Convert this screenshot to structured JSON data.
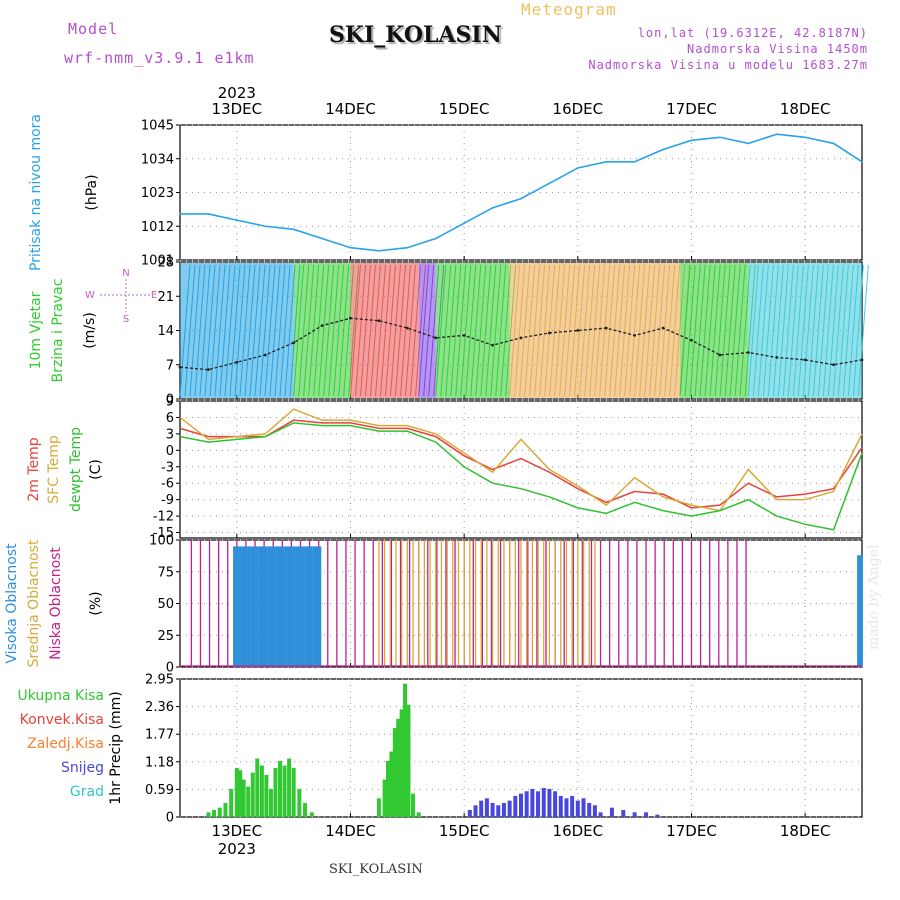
{
  "header": {
    "model_label": "Model",
    "model_name": "wrf-nmm_v3.9.1 e1km",
    "station": "SKI_KOLASIN",
    "type": "Meteogram",
    "lonlat": "lon,lat (19.6312E, 42.8187N)",
    "elevation": "Nadmorska Visina 1450m",
    "elevation_model": "Nadmorska Visina u modelu 1683.27m"
  },
  "footer": {
    "station": "SKI_KOLASIN",
    "watermark": "made by Angel"
  },
  "colors": {
    "pressure": "#29a3e6",
    "temp2m": "#e8423c",
    "sfc_temp": "#d9a83a",
    "dewpt": "#30c030",
    "high_cloud": "#2f8fd8",
    "mid_cloud": "#d9a83a",
    "low_cloud": "#c0208c",
    "total_precip": "#32c832",
    "conv_precip": "#e8423c",
    "freezing_precip": "#ff7f2a",
    "snow": "#4848e0",
    "hail": "#30c8c8",
    "wind_label": "#2ecc2e",
    "wind_dir": "#c060c0"
  },
  "chart_data": [
    {
      "type": "line",
      "panel": "pressure",
      "ylabel_lines": [
        "Pritisak na nivou mora",
        "(hPa)"
      ],
      "yticks": [
        1001,
        1012,
        1023,
        1034,
        1045
      ],
      "ylim": [
        1001,
        1045
      ],
      "top_xaxis": {
        "year": "2023",
        "ticks": [
          "13DEC",
          "14DEC",
          "15DEC",
          "16DEC",
          "17DEC",
          "18DEC"
        ]
      },
      "x_days": [
        12.5,
        12.75,
        13.0,
        13.25,
        13.5,
        13.75,
        14.0,
        14.25,
        14.5,
        14.75,
        15.0,
        15.25,
        15.5,
        15.75,
        16.0,
        16.25,
        16.5,
        16.75,
        17.0,
        17.25,
        17.5,
        17.75,
        18.0,
        18.25,
        18.5
      ],
      "series": [
        {
          "values": [
            1016,
            1016,
            1014,
            1012,
            1011,
            1008,
            1005,
            1004,
            1005,
            1008,
            1013,
            1018,
            1021,
            1026,
            1031,
            1033,
            1033,
            1037,
            1040,
            1041,
            1039,
            1042,
            1041,
            1039,
            1033
          ]
        }
      ]
    },
    {
      "type": "line",
      "panel": "wind",
      "ylabel_lines": [
        "10m Vjetar",
        "Brzina i Pravac",
        "(m/s)"
      ],
      "direction_legend": [
        "N",
        "W",
        "E",
        "S"
      ],
      "yticks": [
        0,
        7,
        14,
        21,
        28
      ],
      "ylim": [
        0,
        28
      ],
      "series": [
        {
          "name": "Brzina",
          "values": [
            6.5,
            6.0,
            7.5,
            9.0,
            11.5,
            15.0,
            16.5,
            16.0,
            14.5,
            12.5,
            13.0,
            11.0,
            12.5,
            13.5,
            14.0,
            14.5,
            13.0,
            14.5,
            12.0,
            9.0,
            9.5,
            8.5,
            8.0,
            7.0,
            8.0
          ]
        }
      ],
      "direction_bands": [
        {
          "from": 12.5,
          "to": 13.5,
          "color": "#1aa0e0"
        },
        {
          "from": 13.5,
          "to": 14.0,
          "color": "#2ecc2e"
        },
        {
          "from": 14.0,
          "to": 14.6,
          "color": "#e85050"
        },
        {
          "from": 14.6,
          "to": 14.75,
          "color": "#7a3ee0"
        },
        {
          "from": 14.75,
          "to": 15.4,
          "color": "#2ecc2e"
        },
        {
          "from": 15.4,
          "to": 16.9,
          "color": "#e8a84a"
        },
        {
          "from": 16.9,
          "to": 17.5,
          "color": "#2ecc2e"
        },
        {
          "from": 17.5,
          "to": 18.5,
          "color": "#38c8d8"
        }
      ]
    },
    {
      "type": "line",
      "panel": "temperature",
      "ylabel_lines": [
        "2m Temp",
        "SFC Temp",
        "dewpt Temp",
        "(C)"
      ],
      "yticks": [
        -15,
        -12,
        -9,
        -6,
        -3,
        0,
        3,
        6,
        9
      ],
      "ylim": [
        -16,
        9
      ],
      "series": [
        {
          "name": "2m Temp",
          "values": [
            4.0,
            2.5,
            2.5,
            2.5,
            5.5,
            5.0,
            5.0,
            4.0,
            4.0,
            2.5,
            -1.0,
            -3.5,
            -1.5,
            -4.0,
            -7.0,
            -9.5,
            -7.5,
            -8.0,
            -10.5,
            -10.0,
            -6.0,
            -8.5,
            -8.0,
            -7.0,
            0.5
          ]
        },
        {
          "name": "SFC Temp",
          "values": [
            6.0,
            2.0,
            2.5,
            3.0,
            7.5,
            5.5,
            5.5,
            4.5,
            4.5,
            3.0,
            -0.5,
            -4.0,
            2.0,
            -3.5,
            -6.5,
            -10.0,
            -5.0,
            -8.5,
            -10.0,
            -11.0,
            -3.5,
            -9.0,
            -9.0,
            -7.5,
            3.0
          ]
        },
        {
          "name": "dewpt Temp",
          "values": [
            2.5,
            1.5,
            2.0,
            2.5,
            5.0,
            4.5,
            4.5,
            3.5,
            3.5,
            1.5,
            -3.0,
            -6.0,
            -7.0,
            -8.5,
            -10.5,
            -11.5,
            -9.5,
            -11.0,
            -12.0,
            -11.0,
            -9.0,
            -12.0,
            -13.5,
            -14.5,
            -0.5
          ]
        }
      ]
    },
    {
      "type": "bar",
      "panel": "clouds",
      "ylabel_lines": [
        "Visoka Oblacnost",
        "Srednja Oblacnost",
        "Niska Oblacnost",
        "(%)"
      ],
      "yticks": [
        0,
        25,
        50,
        75,
        100
      ],
      "ylim": [
        0,
        100
      ],
      "series": [
        {
          "name": "Visoka Oblacnost",
          "segments": [
            [
              12.98,
              13.75,
              95
            ],
            [
              18.47,
              18.5,
              88
            ]
          ]
        },
        {
          "name": "Srednja Oblacnost",
          "segments": [
            [
              13.55,
              13.75,
              95
            ],
            [
              14.25,
              16.2,
              100
            ]
          ]
        },
        {
          "name": "Niska Oblacnost",
          "segments": [
            [
              12.6,
              17.5,
              100
            ]
          ]
        }
      ]
    },
    {
      "type": "bar",
      "panel": "precip",
      "ylabel_lines": [
        "1hr Precip (mm)"
      ],
      "legend": [
        "Ukupna Kisa",
        "Konvek.Kisa",
        "Zaledj.Kisa",
        "Snijeg",
        "Grad"
      ],
      "yticks": [
        0,
        0.59,
        1.18,
        1.77,
        2.36,
        2.95
      ],
      "ylim": [
        0,
        2.95
      ],
      "bottom_xaxis": {
        "year": "2023",
        "ticks": [
          "13DEC",
          "14DEC",
          "15DEC",
          "16DEC",
          "17DEC",
          "18DEC"
        ]
      },
      "series": [
        {
          "name": "Ukupna Kisa",
          "x": [
            12.75,
            12.8,
            12.85,
            12.9,
            12.95,
            13.0,
            13.03,
            13.06,
            13.1,
            13.14,
            13.18,
            13.22,
            13.26,
            13.3,
            13.34,
            13.38,
            13.42,
            13.46,
            13.5,
            13.55,
            13.6,
            13.66,
            14.25,
            14.3,
            14.33,
            14.36,
            14.39,
            14.42,
            14.45,
            14.48,
            14.51,
            14.55,
            14.6
          ],
          "values": [
            0.1,
            0.15,
            0.2,
            0.3,
            0.6,
            1.05,
            1.0,
            0.8,
            0.65,
            0.95,
            1.25,
            1.1,
            0.9,
            0.6,
            1.05,
            1.2,
            1.1,
            1.25,
            1.05,
            0.6,
            0.3,
            0.1,
            0.4,
            0.8,
            1.2,
            1.4,
            1.9,
            2.1,
            2.3,
            2.85,
            2.4,
            0.5,
            0.1
          ]
        },
        {
          "name": "Snijeg",
          "x": [
            15.05,
            15.1,
            15.15,
            15.2,
            15.25,
            15.3,
            15.35,
            15.4,
            15.45,
            15.5,
            15.55,
            15.6,
            15.65,
            15.7,
            15.75,
            15.8,
            15.85,
            15.9,
            15.95,
            16.0,
            16.05,
            16.1,
            16.15,
            16.2,
            16.3,
            16.4,
            16.5,
            16.6,
            16.7
          ],
          "values": [
            0.15,
            0.25,
            0.35,
            0.4,
            0.3,
            0.25,
            0.3,
            0.35,
            0.45,
            0.5,
            0.55,
            0.6,
            0.55,
            0.62,
            0.6,
            0.55,
            0.45,
            0.4,
            0.45,
            0.35,
            0.4,
            0.3,
            0.25,
            0.1,
            0.2,
            0.15,
            0.1,
            0.1,
            0.05
          ]
        }
      ]
    }
  ]
}
